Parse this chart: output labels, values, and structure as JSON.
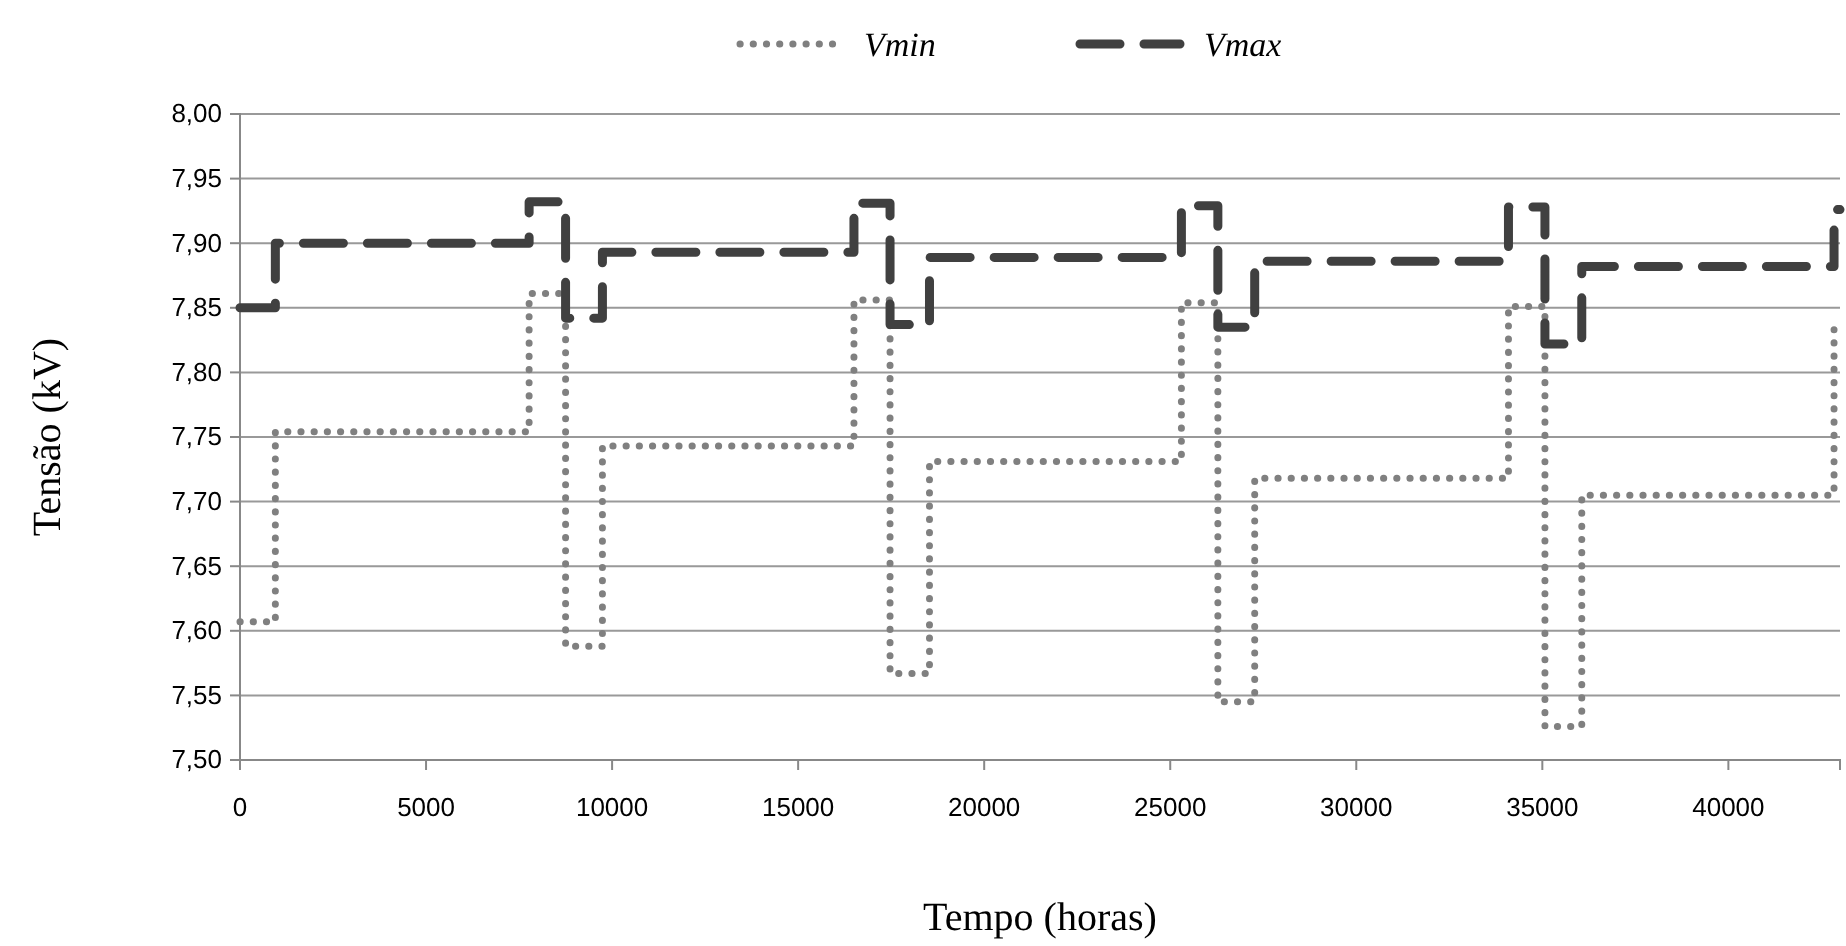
{
  "chart_data": {
    "type": "step",
    "xlabel": "Tempo (horas)",
    "ylabel": "Tensão (kV)",
    "x": [
      0,
      950,
      7770,
      8750,
      9740,
      16500,
      17470,
      18530,
      25300,
      26280,
      27270,
      34090,
      35070,
      36060,
      42840,
      43000
    ],
    "series": [
      {
        "name": "Vmin",
        "color": "#808080",
        "line_style": "dotted",
        "values": [
          7.607,
          7.754,
          7.861,
          7.588,
          7.743,
          7.856,
          7.567,
          7.731,
          7.854,
          7.545,
          7.718,
          7.851,
          7.526,
          7.705,
          7.838,
          7.838
        ]
      },
      {
        "name": "Vmax",
        "color": "#404040",
        "line_style": "dashed",
        "values": [
          7.85,
          7.9,
          7.932,
          7.842,
          7.893,
          7.931,
          7.837,
          7.889,
          7.929,
          7.835,
          7.886,
          7.928,
          7.822,
          7.882,
          7.926,
          7.926
        ]
      }
    ],
    "xlim": [
      0,
      43000
    ],
    "xticks": [
      0,
      5000,
      10000,
      15000,
      20000,
      25000,
      30000,
      35000,
      40000
    ],
    "ylim": [
      7.5,
      8.0
    ],
    "yticks": [
      {
        "value": 7.5,
        "label": "7,50"
      },
      {
        "value": 7.55,
        "label": "7,55"
      },
      {
        "value": 7.6,
        "label": "7,60"
      },
      {
        "value": 7.65,
        "label": "7,65"
      },
      {
        "value": 7.7,
        "label": "7,70"
      },
      {
        "value": 7.75,
        "label": "7,75"
      },
      {
        "value": 7.8,
        "label": "7,80"
      },
      {
        "value": 7.85,
        "label": "7,85"
      },
      {
        "value": 7.9,
        "label": "7,90"
      },
      {
        "value": 7.95,
        "label": "7,95"
      },
      {
        "value": 8.0,
        "label": "8,00"
      }
    ],
    "grid": "y",
    "legend": "top"
  }
}
